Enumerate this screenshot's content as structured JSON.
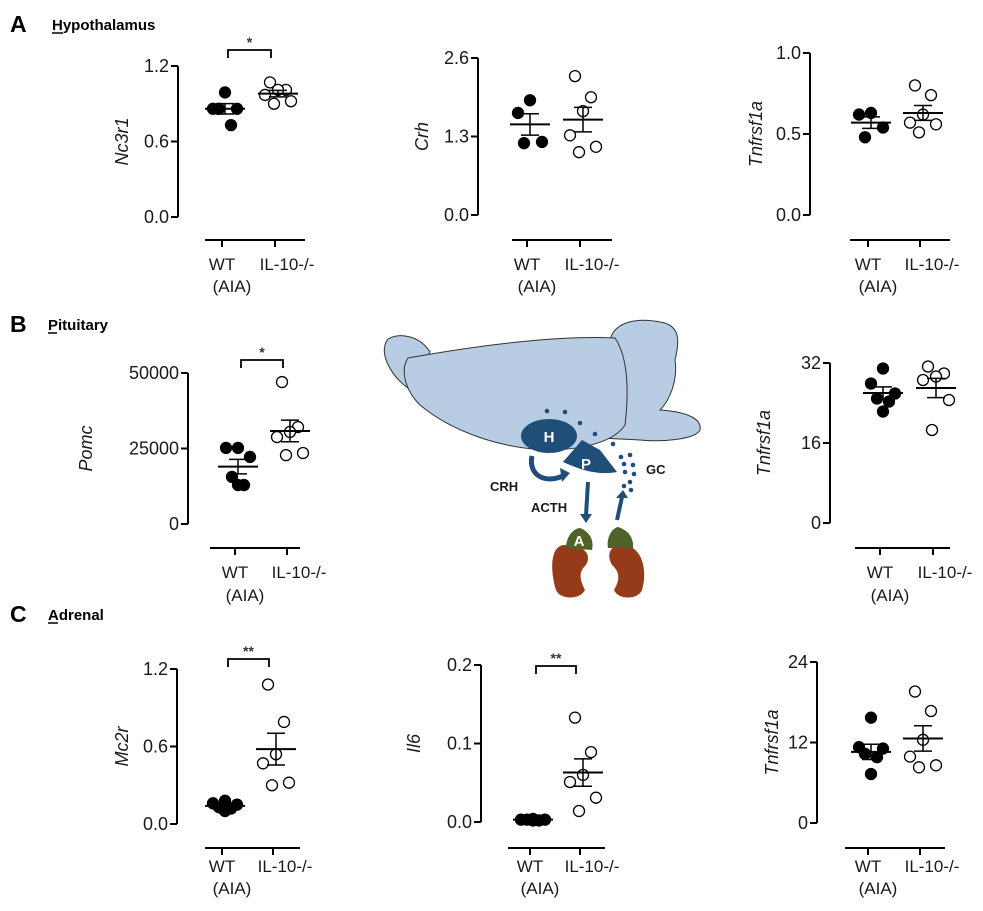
{
  "panels": [
    {
      "letter": "A",
      "title": "Hypothalamus"
    },
    {
      "letter": "B",
      "title": "Pituitary"
    },
    {
      "letter": "C",
      "title": "Adrenal"
    }
  ],
  "diagram": {
    "labels": {
      "hypothalamus": "H",
      "pituitary": "P",
      "adrenal": "A",
      "crh": "CRH",
      "acth": "ACTH",
      "gc": "GC"
    },
    "colors": {
      "brain": "#b8cce4",
      "organ": "#1f4e79",
      "adrenal_cortex": "#4f6228",
      "kidney": "#953b1a"
    }
  },
  "chart_data": [
    {
      "id": "A1",
      "panel": "A",
      "type": "scatter",
      "ylabel": "Nc3r1",
      "ylim": [
        0,
        1.2
      ],
      "yticks": [
        "0.0",
        "0.6",
        "1.2"
      ],
      "ytick_values": [
        0,
        0.6,
        1.2
      ],
      "categories": [
        "WT",
        "IL-10-/-"
      ],
      "category_note": "(AIA)",
      "significance": "*",
      "series": [
        {
          "values": [
            0.99,
            0.86,
            0.86,
            0.86,
            0.73
          ],
          "mean": 0.86,
          "filled": true
        },
        {
          "values": [
            1.07,
            1.01,
            1.01,
            0.97,
            0.92,
            0.9
          ],
          "mean": 0.98,
          "filled": false
        }
      ]
    },
    {
      "id": "A2",
      "panel": "A",
      "type": "scatter",
      "ylabel": "Crh",
      "ylim": [
        0,
        2.6
      ],
      "yticks": [
        "0.0",
        "1.3",
        "2.6"
      ],
      "ytick_values": [
        0,
        1.3,
        2.6
      ],
      "categories": [
        "WT",
        "IL-10-/-"
      ],
      "category_note": "(AIA)",
      "significance": "",
      "series": [
        {
          "values": [
            1.9,
            1.69,
            1.21,
            1.19
          ],
          "mean": 1.5,
          "filled": true
        },
        {
          "values": [
            2.3,
            1.95,
            1.72,
            1.32,
            1.13,
            1.04
          ],
          "mean": 1.58,
          "filled": false
        }
      ]
    },
    {
      "id": "A3",
      "panel": "A",
      "type": "scatter",
      "ylabel": "Tnfrsf1a",
      "ylim": [
        0,
        1.0
      ],
      "yticks": [
        "0.0",
        "0.5",
        "1.0"
      ],
      "ytick_values": [
        0,
        0.5,
        1.0
      ],
      "categories": [
        "WT",
        "IL-10-/-"
      ],
      "category_note": "(AIA)",
      "significance": "",
      "series": [
        {
          "values": [
            0.63,
            0.62,
            0.54,
            0.48
          ],
          "mean": 0.57,
          "filled": true
        },
        {
          "values": [
            0.8,
            0.74,
            0.62,
            0.57,
            0.56,
            0.51
          ],
          "mean": 0.63,
          "filled": false
        }
      ]
    },
    {
      "id": "B1",
      "panel": "B",
      "type": "scatter",
      "ylabel": "Pomc",
      "ylim": [
        0,
        50000
      ],
      "yticks": [
        "0",
        "25000",
        "50000"
      ],
      "ytick_values": [
        0,
        25000,
        50000
      ],
      "categories": [
        "WT",
        "IL-10-/-"
      ],
      "category_note": "(AIA)",
      "significance": "*",
      "series": [
        {
          "values": [
            25200,
            25200,
            22200,
            15600,
            12900,
            12900
          ],
          "mean": 19000,
          "filled": true
        },
        {
          "values": [
            47000,
            32100,
            30500,
            28800,
            23500,
            22800
          ],
          "mean": 30800,
          "filled": false
        }
      ]
    },
    {
      "id": "B3",
      "panel": "B",
      "type": "scatter",
      "ylabel": "Tnfrsf1a",
      "ylim": [
        0,
        32
      ],
      "yticks": [
        "0",
        "16",
        "32"
      ],
      "ytick_values": [
        0,
        16,
        32
      ],
      "categories": [
        "WT",
        "IL-10-/-"
      ],
      "category_note": "(AIA)",
      "significance": "",
      "series": [
        {
          "values": [
            30.9,
            27.9,
            25.9,
            24.9,
            24.3,
            22.3
          ],
          "mean": 26.0,
          "filled": true
        },
        {
          "values": [
            31.3,
            29.9,
            29.3,
            28.6,
            24.6,
            18.6
          ],
          "mean": 27.0,
          "filled": false
        }
      ]
    },
    {
      "id": "C1",
      "panel": "C",
      "type": "scatter",
      "ylabel": "Mc2r",
      "ylim": [
        0,
        1.2
      ],
      "yticks": [
        "0.0",
        "0.6",
        "1.2"
      ],
      "ytick_values": [
        0,
        0.6,
        1.2
      ],
      "categories": [
        "WT",
        "IL-10-/-"
      ],
      "category_note": "(AIA)",
      "significance": "**",
      "series": [
        {
          "values": [
            0.18,
            0.16,
            0.15,
            0.13,
            0.12,
            0.1
          ],
          "mean": 0.14,
          "filled": true
        },
        {
          "values": [
            1.08,
            0.79,
            0.54,
            0.47,
            0.32,
            0.3
          ],
          "mean": 0.58,
          "filled": false
        }
      ]
    },
    {
      "id": "C2",
      "panel": "C",
      "type": "scatter",
      "ylabel": "Il6",
      "ylim": [
        0,
        0.2
      ],
      "yticks": [
        "0.0",
        "0.1",
        "0.2"
      ],
      "ytick_values": [
        0,
        0.1,
        0.2
      ],
      "categories": [
        "WT",
        "IL-10-/-"
      ],
      "category_note": "(AIA)",
      "significance": "**",
      "series": [
        {
          "values": [
            0.004,
            0.003,
            0.003,
            0.003,
            0.002,
            0.002
          ],
          "mean": 0.003,
          "filled": true
        },
        {
          "values": [
            0.133,
            0.089,
            0.06,
            0.051,
            0.031,
            0.014
          ],
          "mean": 0.063,
          "filled": false
        }
      ]
    },
    {
      "id": "C3",
      "panel": "C",
      "type": "scatter",
      "ylabel": "Tnfrsf1a",
      "ylim": [
        0,
        24
      ],
      "yticks": [
        "0",
        "12",
        "24"
      ],
      "ytick_values": [
        0,
        12,
        24
      ],
      "categories": [
        "WT",
        "IL-10-/-"
      ],
      "category_note": "(AIA)",
      "significance": "",
      "series": [
        {
          "values": [
            15.7,
            11.3,
            11.1,
            10.3,
            9.8,
            7.3
          ],
          "mean": 10.6,
          "filled": true
        },
        {
          "values": [
            19.6,
            16.7,
            12.4,
            9.9,
            8.6,
            8.3
          ],
          "mean": 12.6,
          "filled": false
        }
      ]
    }
  ]
}
